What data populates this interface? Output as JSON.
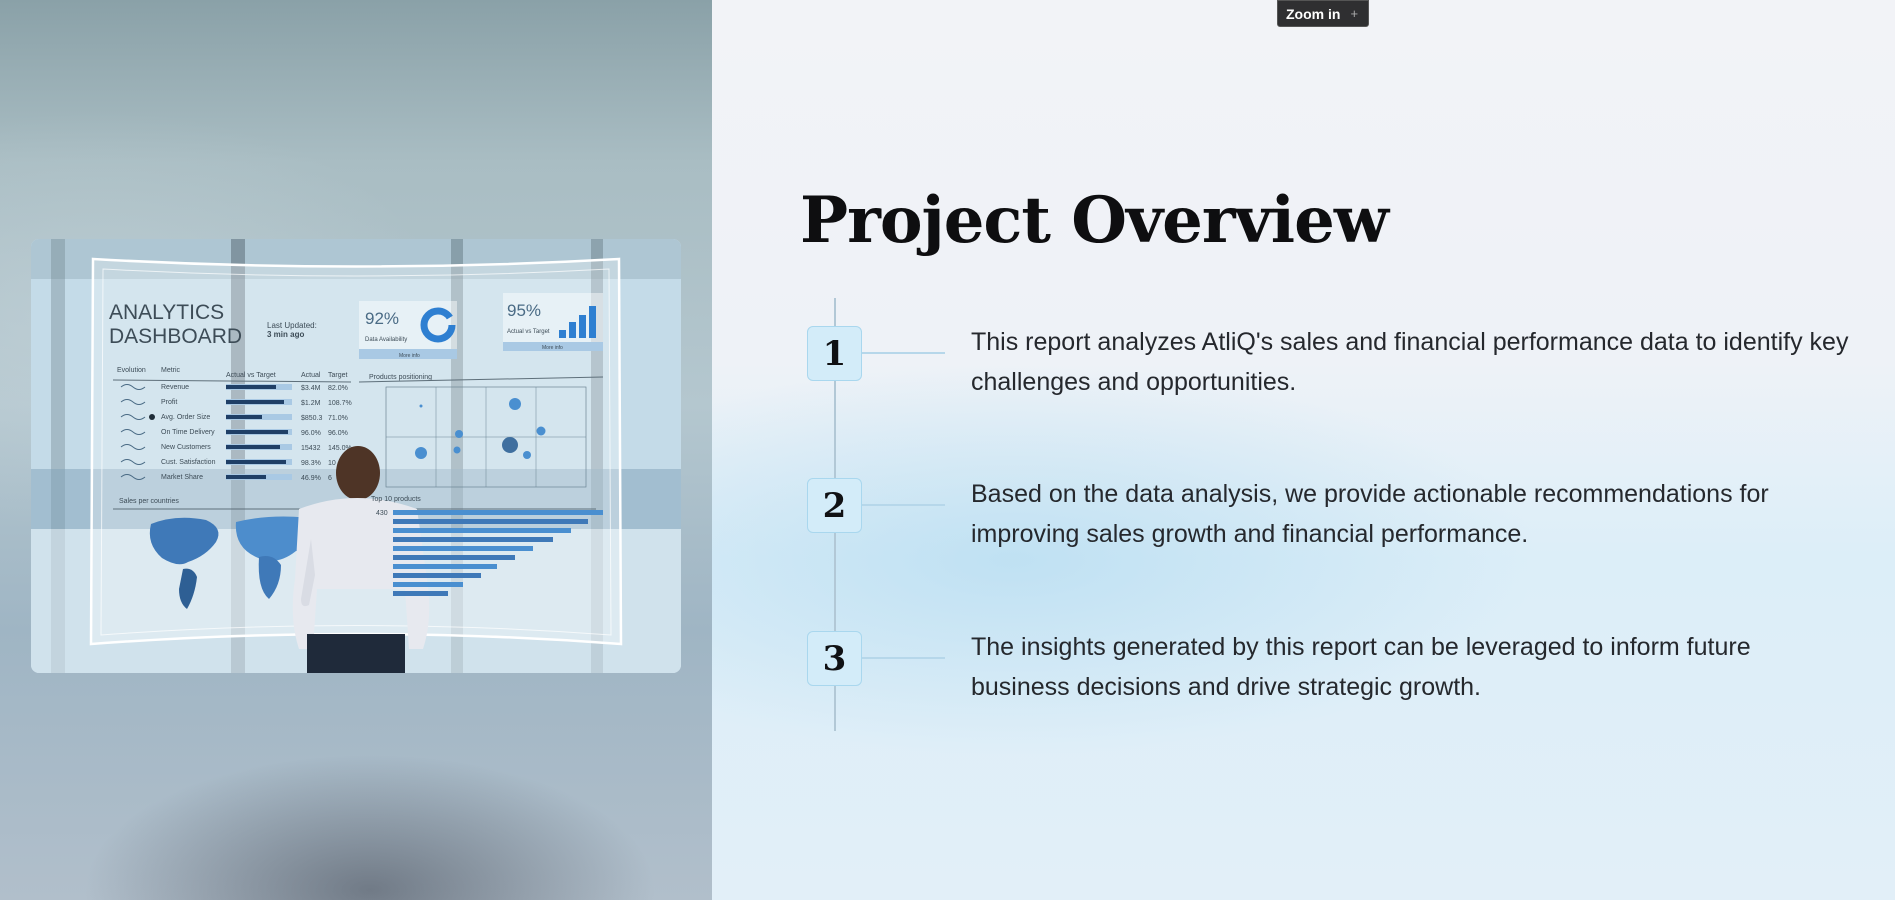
{
  "tooltip": {
    "label": "Zoom in",
    "plus": "+"
  },
  "hero": {
    "dashboard_title_line1": "ANALYTICS",
    "dashboard_title_line2": "DASHBOARD",
    "last_updated_label": "Last Updated:",
    "last_updated_value": "3 min ago",
    "kpi1_value": "92%",
    "kpi1_label": "Data Availability",
    "kpi1_more": "More info",
    "kpi2_value": "95%",
    "kpi2_label": "Actual vs Target",
    "kpi2_more": "More info",
    "col_evolution": "Evolution",
    "col_metric": "Metric",
    "col_avt": "Actual vs Target",
    "col_actual": "Actual",
    "col_target": "Target",
    "products_positioning": "Products positioning",
    "sales_per_countries": "Sales per countries",
    "top10_products": "Top 10 products",
    "top10_first_value": "430",
    "metrics": [
      {
        "name": "Revenue",
        "actual": "$3.4M",
        "target": "82.0%"
      },
      {
        "name": "Profit",
        "actual": "$1.2M",
        "target": "108.7%"
      },
      {
        "name": "Avg. Order Size",
        "actual": "$850.3",
        "target": "71.0%"
      },
      {
        "name": "On Time Delivery",
        "actual": "96.0%",
        "target": "96.0%"
      },
      {
        "name": "New Customers",
        "actual": "15432",
        "target": "145.0%"
      },
      {
        "name": "Cust. Satisfaction",
        "actual": "98.3%",
        "target": "10"
      },
      {
        "name": "Market Share",
        "actual": "46.9%",
        "target": "6"
      }
    ]
  },
  "main": {
    "title": "Project Overview",
    "steps": [
      {
        "number": "1",
        "text": "This report analyzes AtliQ's sales and financial performance data to identify key challenges and opportunities."
      },
      {
        "number": "2",
        "text": "Based on the data analysis, we provide actionable recommendations for improving sales growth and financial performance."
      },
      {
        "number": "3",
        "text": "The insights generated by this report can be leveraged to inform future business decisions and drive strategic growth."
      }
    ]
  },
  "colors": {
    "accent_badge": "#d3ecf9",
    "timeline": "#b2c8d6",
    "title_text": "#0e0e10",
    "body_text": "#25282d",
    "tooltip_bg": "#2f2f31"
  }
}
